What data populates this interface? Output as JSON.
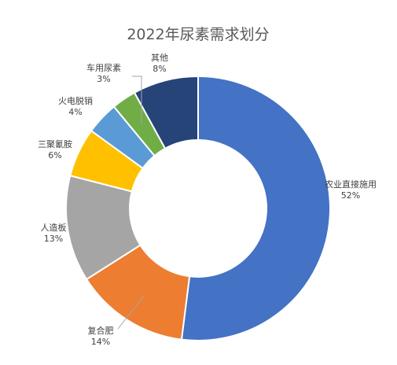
{
  "chart_data": {
    "type": "pie",
    "variant": "donut",
    "title": "2022年尿素需求划分",
    "categories": [
      "农业直接施用",
      "复合肥",
      "人造板",
      "三聚氰胺",
      "火电脱销",
      "车用尿素",
      "其他"
    ],
    "values": [
      52,
      14,
      13,
      6,
      4,
      3,
      8
    ],
    "value_labels": [
      "52%",
      "14%",
      "13%",
      "6%",
      "4%",
      "3%",
      "8%"
    ],
    "colors": [
      "#4472C4",
      "#ED7D31",
      "#A5A5A5",
      "#FFC000",
      "#5B9BD5",
      "#70AD47",
      "#264478"
    ],
    "start_angle": "12 o'clock",
    "direction": "clockwise",
    "legend": "none"
  }
}
